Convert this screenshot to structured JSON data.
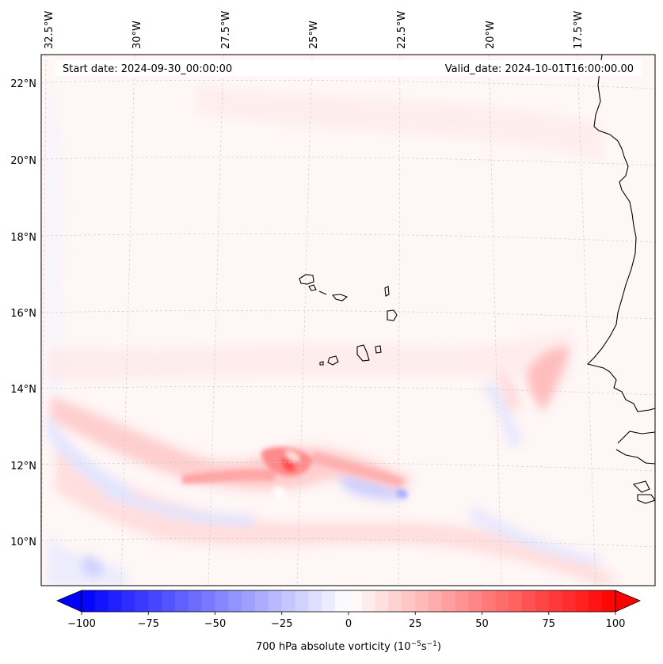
{
  "annotations": {
    "start_date": "Start date: 2024-09-30_00:00:00",
    "valid_date": "Valid_date: 2024-10-01T16:00:00.00"
  },
  "longitude_labels": [
    "32.5°W",
    "30°W",
    "27.5°W",
    "25°W",
    "22.5°W",
    "20°W",
    "17.5°W"
  ],
  "latitude_labels": [
    "22°N",
    "20°N",
    "18°N",
    "16°N",
    "14°N",
    "12°N",
    "10°N"
  ],
  "colorbar": {
    "label_prefix": "700 hPa absolute vorticity (10",
    "label_exp1": "−5",
    "label_mid": "s",
    "label_exp2": "−1",
    "label_suffix": ")",
    "ticks": [
      "−100",
      "−75",
      "−50",
      "−25",
      "0",
      "25",
      "50",
      "75",
      "100"
    ],
    "min": -100,
    "max": 100,
    "levels": 40,
    "colormap": "bwr",
    "color_low": "#0000ff",
    "color_mid": "#ffffff",
    "color_high": "#ff0000"
  },
  "colors": {
    "coastline": "#000000",
    "gridline": "#c8c8c8",
    "background": "#fff5f5"
  }
}
